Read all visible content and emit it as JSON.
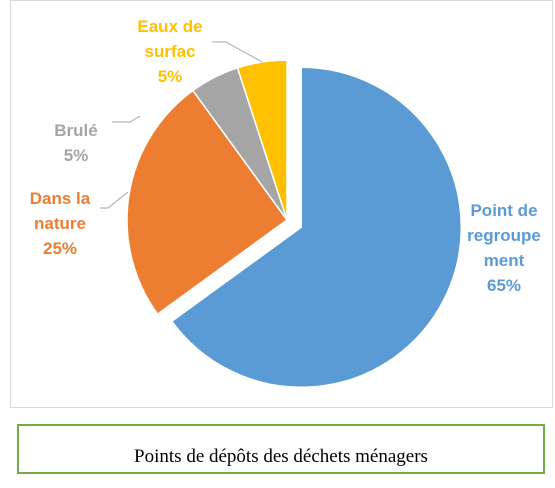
{
  "chart_data": {
    "type": "pie",
    "categories": [
      "Point de regroupement",
      "Dans la nature",
      "Brulé",
      "Eaux de surfac"
    ],
    "values": [
      65,
      25,
      5,
      5
    ],
    "value_labels": [
      "65%",
      "25%",
      "5%",
      "5%"
    ],
    "colors": [
      "#5b9bd5",
      "#ed7d31",
      "#a5a5a5",
      "#ffc000"
    ]
  },
  "caption": "Points de dépôts des déchets ménagers"
}
